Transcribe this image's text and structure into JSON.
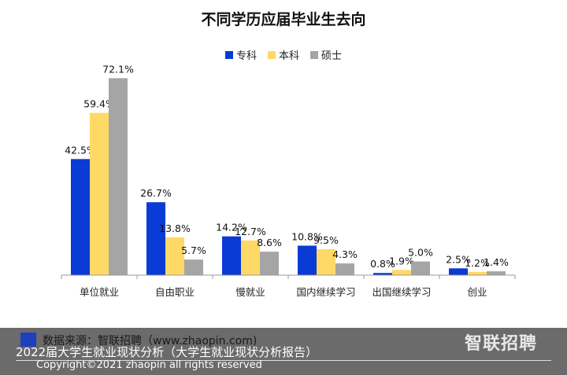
{
  "chart_data": {
    "type": "bar",
    "title": "不同学历应届毕业生去向",
    "categories": [
      "单位就业",
      "自由职业",
      "慢就业",
      "国内继续学习",
      "出国继续学习",
      "创业"
    ],
    "series": [
      {
        "name": "专科",
        "color": "#0a3bd4",
        "values": [
          42.5,
          26.7,
          14.2,
          10.8,
          0.8,
          2.5
        ],
        "labels": [
          "42.5%",
          "26.7%",
          "14.2%",
          "10.8%",
          "0.8%",
          "2.5%"
        ]
      },
      {
        "name": "本科",
        "color": "#ffd966",
        "values": [
          59.4,
          13.8,
          12.7,
          9.5,
          1.9,
          1.2
        ],
        "labels": [
          "59.4%",
          "13.8%",
          "12.7%",
          "9.5%",
          "1.9%",
          "1.2%"
        ]
      },
      {
        "name": "硕士",
        "color": "#a5a5a5",
        "values": [
          72.1,
          5.7,
          8.6,
          4.3,
          5.0,
          1.4
        ],
        "labels": [
          "72.1%",
          "5.7%",
          "8.6%",
          "4.3%",
          "5.0%",
          "1.4%"
        ]
      }
    ],
    "ylim": [
      0,
      80
    ],
    "grid": false,
    "legend": "top-center"
  },
  "footer": {
    "source": "数据来源：智联招聘（www.zhaopin.com)",
    "caption": "2022届大学生就业现状分析（大学生就业现状分析报告）",
    "copyright": "Copyright©2021 zhaopin all rights reserved",
    "logo": "智联招聘"
  }
}
